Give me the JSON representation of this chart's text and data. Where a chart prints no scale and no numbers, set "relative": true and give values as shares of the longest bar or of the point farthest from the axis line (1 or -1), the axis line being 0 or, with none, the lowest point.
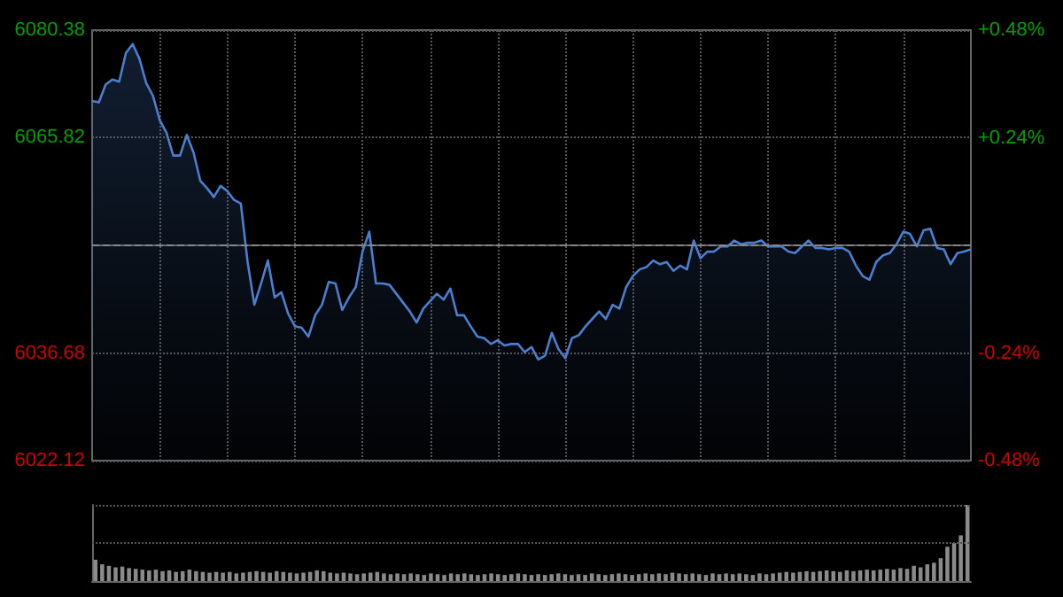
{
  "chart_data": [
    {
      "type": "area",
      "categories": [
        null,
        null,
        null,
        null,
        null,
        null,
        null,
        null,
        null,
        null,
        null,
        null,
        null,
        null,
        null,
        null,
        null,
        null,
        null,
        null,
        null,
        null,
        null,
        null,
        null,
        null,
        null,
        null,
        null,
        null,
        null,
        null,
        null,
        null,
        null,
        null,
        null,
        null,
        null,
        null,
        null,
        null,
        null,
        null,
        null,
        null,
        null,
        null,
        null,
        null,
        null,
        null,
        null,
        null,
        null,
        null,
        null,
        null,
        null,
        null,
        null,
        null,
        null,
        null,
        null,
        null,
        null,
        null,
        null,
        null,
        null,
        null,
        null,
        null,
        null,
        null,
        null,
        null,
        null,
        null,
        null,
        null,
        null,
        null,
        null,
        null,
        null,
        null,
        null,
        null,
        null,
        null,
        null,
        null,
        null,
        null,
        null,
        null,
        null,
        null,
        null,
        null,
        null,
        null,
        null,
        null,
        null,
        null,
        null,
        null,
        null,
        null,
        null,
        null,
        null,
        null,
        null,
        null,
        null,
        null,
        null,
        null,
        null,
        null,
        null,
        null,
        null,
        null,
        null,
        null,
        null
      ],
      "series": [
        {
          "color": "#4a7fd0",
          "values": [
            6070.8,
            6070.6,
            6073.0,
            6073.7,
            6073.4,
            6077.3,
            6078.5,
            6076.5,
            6073.2,
            6071.5,
            6068.2,
            6066.5,
            6063.4,
            6063.4,
            6066.2,
            6063.8,
            6060.0,
            6059.0,
            6057.8,
            6059.3,
            6058.6,
            6057.4,
            6056.9,
            6049.0,
            6043.2,
            6046.1,
            6049.2,
            6044.2,
            6044.9,
            6042.0,
            6040.3,
            6040.1,
            6038.9,
            6041.8,
            6043.2,
            6046.3,
            6046.1,
            6042.5,
            6044.2,
            6045.6,
            6050.4,
            6053.1,
            6046.1,
            6046.1,
            6045.9,
            6044.7,
            6043.5,
            6042.3,
            6040.8,
            6042.7,
            6043.7,
            6044.7,
            6043.9,
            6045.4,
            6041.8,
            6041.8,
            6040.3,
            6038.9,
            6038.7,
            6037.9,
            6038.4,
            6037.7,
            6037.9,
            6037.9,
            6036.8,
            6037.5,
            6035.8,
            6036.3,
            6039.4,
            6037.2,
            6036.0,
            6038.7,
            6039.1,
            6040.3,
            6041.3,
            6042.3,
            6041.3,
            6043.2,
            6042.7,
            6045.6,
            6047.1,
            6048.0,
            6048.3,
            6049.2,
            6048.7,
            6049.0,
            6047.8,
            6048.5,
            6048.0,
            6051.9,
            6049.5,
            6050.4,
            6050.4,
            6051.1,
            6051.1,
            6051.9,
            6051.4,
            6051.6,
            6051.6,
            6051.9,
            6051.1,
            6051.1,
            6051.1,
            6050.4,
            6050.2,
            6051.1,
            6051.9,
            6050.9,
            6050.9,
            6050.7,
            6050.9,
            6050.9,
            6050.4,
            6048.5,
            6047.1,
            6046.6,
            6049.0,
            6049.9,
            6050.2,
            6051.4,
            6053.1,
            6052.8,
            6051.1,
            6053.3,
            6053.5,
            6050.9,
            6050.7,
            6048.7,
            6050.2,
            6050.4,
            6050.7
          ]
        }
      ],
      "ylim": [
        6022.12,
        6080.38
      ],
      "yticks": [
        6022.12,
        6036.68,
        6065.82,
        6080.38
      ],
      "y2lim": [
        -0.48,
        0.48
      ],
      "y2ticks": [
        {
          "value": -0.48,
          "label": "-0.48%"
        },
        {
          "value": -0.24,
          "label": "-0.24%"
        },
        {
          "value": 0.24,
          "label": "+0.24%"
        },
        {
          "value": 0.48,
          "label": "+0.48%"
        }
      ],
      "ref_lines": [
        {
          "axis": "y",
          "value": 6051.25,
          "color": "#888888",
          "line_style": "dashed"
        }
      ],
      "grid": true,
      "tick_labels": "y"
    },
    {
      "type": "bar",
      "relative": true,
      "ref_lines": [
        {
          "axis": "y",
          "value": 0.5,
          "color": "#555555",
          "line_style": "dotted"
        },
        {
          "axis": "y",
          "value": 1,
          "color": "#555555",
          "line_style": "dotted"
        }
      ],
      "categories": [
        null,
        null,
        null,
        null,
        null,
        null,
        null,
        null,
        null,
        null,
        null,
        null,
        null,
        null,
        null,
        null,
        null,
        null,
        null,
        null,
        null,
        null,
        null,
        null,
        null,
        null,
        null,
        null,
        null,
        null,
        null,
        null,
        null,
        null,
        null,
        null,
        null,
        null,
        null,
        null,
        null,
        null,
        null,
        null,
        null,
        null,
        null,
        null,
        null,
        null,
        null,
        null,
        null,
        null,
        null,
        null,
        null,
        null,
        null,
        null,
        null,
        null,
        null,
        null,
        null,
        null,
        null,
        null,
        null,
        null,
        null,
        null,
        null,
        null,
        null,
        null,
        null,
        null,
        null,
        null,
        null,
        null,
        null,
        null,
        null,
        null,
        null,
        null,
        null,
        null,
        null,
        null,
        null,
        null,
        null,
        null,
        null,
        null,
        null,
        null,
        null,
        null,
        null,
        null,
        null,
        null,
        null,
        null,
        null,
        null,
        null,
        null,
        null,
        null,
        null,
        null,
        null,
        null,
        null,
        null,
        null,
        null,
        null,
        null,
        null,
        null,
        null,
        null,
        null,
        null,
        null
      ],
      "color": "#8a8a8a",
      "values": [
        0.28,
        0.22,
        0.2,
        0.18,
        0.19,
        0.17,
        0.16,
        0.15,
        0.14,
        0.15,
        0.13,
        0.14,
        0.12,
        0.13,
        0.15,
        0.13,
        0.12,
        0.11,
        0.12,
        0.11,
        0.12,
        0.1,
        0.11,
        0.12,
        0.13,
        0.12,
        0.11,
        0.13,
        0.12,
        0.11,
        0.1,
        0.11,
        0.12,
        0.14,
        0.13,
        0.11,
        0.1,
        0.11,
        0.1,
        0.09,
        0.1,
        0.11,
        0.12,
        0.1,
        0.09,
        0.1,
        0.09,
        0.1,
        0.09,
        0.08,
        0.1,
        0.09,
        0.08,
        0.1,
        0.09,
        0.1,
        0.09,
        0.08,
        0.09,
        0.1,
        0.09,
        0.08,
        0.09,
        0.1,
        0.09,
        0.08,
        0.09,
        0.08,
        0.09,
        0.1,
        0.09,
        0.08,
        0.09,
        0.08,
        0.1,
        0.09,
        0.08,
        0.09,
        0.1,
        0.09,
        0.08,
        0.09,
        0.1,
        0.09,
        0.1,
        0.09,
        0.11,
        0.1,
        0.09,
        0.1,
        0.09,
        0.08,
        0.1,
        0.09,
        0.1,
        0.09,
        0.1,
        0.09,
        0.08,
        0.1,
        0.09,
        0.1,
        0.11,
        0.12,
        0.11,
        0.12,
        0.13,
        0.12,
        0.13,
        0.14,
        0.13,
        0.12,
        0.14,
        0.13,
        0.14,
        0.15,
        0.14,
        0.15,
        0.16,
        0.15,
        0.17,
        0.16,
        0.2,
        0.18,
        0.22,
        0.24,
        0.3,
        0.45,
        0.5,
        0.6,
        1
      ]
    }
  ]
}
